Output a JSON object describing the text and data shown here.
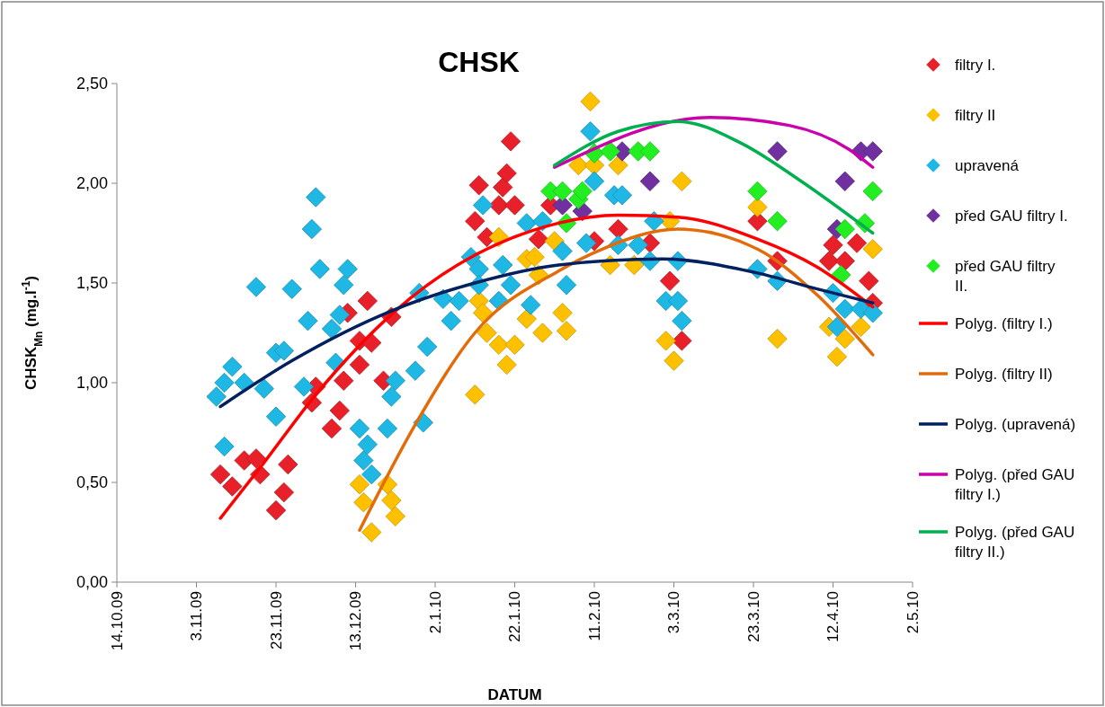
{
  "chart_data": {
    "type": "scatter",
    "title": "CHSK",
    "xlabel": "DATUM",
    "ylabel": "CHSK$_{Mn}$ (mg.l$^{-1}$)",
    "xlim": [
      "2009-10-14",
      "2010-05-02"
    ],
    "xticks": [
      {
        "value": "2009-10-14",
        "label": "14.10.09"
      },
      {
        "value": "2009-11-03",
        "label": "3.11.09"
      },
      {
        "value": "2009-11-23",
        "label": "23.11.09"
      },
      {
        "value": "2009-12-13",
        "label": "13.12.09"
      },
      {
        "value": "2010-01-02",
        "label": "2.1.10"
      },
      {
        "value": "2010-01-22",
        "label": "22.1.10"
      },
      {
        "value": "2010-02-11",
        "label": "11.2.10"
      },
      {
        "value": "2010-03-03",
        "label": "3.3.10"
      },
      {
        "value": "2010-03-23",
        "label": "23.3.10"
      },
      {
        "value": "2010-04-12",
        "label": "12.4.10"
      },
      {
        "value": "2010-05-02",
        "label": "2.5.10"
      }
    ],
    "ylim": [
      0,
      2.5
    ],
    "yticks": [
      {
        "value": 0,
        "label": "0,00"
      },
      {
        "value": 0.5,
        "label": "0,50"
      },
      {
        "value": 1,
        "label": "1,00"
      },
      {
        "value": 1.5,
        "label": "1,50"
      },
      {
        "value": 2,
        "label": "2,00"
      },
      {
        "value": 2.5,
        "label": "2,50"
      }
    ],
    "grid": false,
    "legend": "right",
    "marker": "diamond",
    "series": [
      {
        "name": "filtry I.",
        "color": "#e8202a",
        "x": [
          "2009-11-09",
          "2009-11-12",
          "2009-11-15",
          "2009-11-18",
          "2009-11-19",
          "2009-11-23",
          "2009-11-25",
          "2009-11-26",
          "2009-12-02",
          "2009-12-03",
          "2009-12-07",
          "2009-12-09",
          "2009-12-10",
          "2009-12-11",
          "2009-12-14",
          "2009-12-14",
          "2009-12-16",
          "2009-12-17",
          "2009-12-20",
          "2009-12-22",
          "2010-01-12",
          "2010-01-13",
          "2010-01-15",
          "2010-01-18",
          "2010-01-19",
          "2010-01-20",
          "2010-01-21",
          "2010-01-22",
          "2010-01-28",
          "2010-01-31",
          "2010-02-11",
          "2010-02-17",
          "2010-02-25",
          "2010-03-02",
          "2010-03-05",
          "2010-03-24",
          "2010-03-29",
          "2010-04-11",
          "2010-04-12",
          "2010-04-15",
          "2010-04-18",
          "2010-04-21",
          "2010-04-22"
        ],
        "values": [
          0.54,
          0.48,
          0.61,
          0.62,
          0.54,
          0.36,
          0.45,
          0.59,
          0.9,
          0.98,
          0.77,
          0.86,
          1.01,
          1.35,
          1.21,
          1.09,
          1.41,
          1.2,
          1.01,
          1.33,
          1.81,
          1.99,
          1.73,
          1.89,
          1.98,
          2.05,
          2.21,
          1.89,
          1.72,
          1.89,
          1.71,
          1.77,
          1.7,
          1.51,
          1.21,
          1.81,
          1.61,
          1.61,
          1.69,
          1.61,
          1.7,
          1.51,
          1.4
        ]
      },
      {
        "name": "filtry II",
        "color": "#ffc000",
        "x": [
          "2009-12-14",
          "2009-12-15",
          "2009-12-17",
          "2009-12-21",
          "2009-12-22",
          "2009-12-23",
          "2010-01-12",
          "2010-01-13",
          "2010-01-14",
          "2010-01-15",
          "2010-01-18",
          "2010-01-18",
          "2010-01-20",
          "2010-01-22",
          "2010-01-25",
          "2010-01-25",
          "2010-01-27",
          "2010-01-28",
          "2010-01-29",
          "2010-02-01",
          "2010-02-03",
          "2010-02-04",
          "2010-02-07",
          "2010-02-10",
          "2010-02-11",
          "2010-02-15",
          "2010-02-17",
          "2010-02-21",
          "2010-03-01",
          "2010-03-02",
          "2010-03-03",
          "2010-03-05",
          "2010-03-24",
          "2010-03-29",
          "2010-04-11",
          "2010-04-13",
          "2010-04-15",
          "2010-04-19",
          "2010-04-22"
        ],
        "values": [
          0.49,
          0.4,
          0.25,
          0.49,
          0.41,
          0.33,
          0.94,
          1.41,
          1.35,
          1.25,
          1.73,
          1.19,
          1.09,
          1.19,
          1.62,
          1.32,
          1.63,
          1.54,
          1.25,
          1.71,
          1.35,
          1.26,
          2.09,
          2.41,
          2.09,
          1.59,
          2.09,
          1.59,
          1.21,
          1.81,
          1.11,
          2.01,
          1.88,
          1.22,
          1.28,
          1.13,
          1.22,
          1.28,
          1.67
        ]
      },
      {
        "name": "upravená",
        "color": "#1fb7e3",
        "x": [
          "2009-11-08",
          "2009-11-10",
          "2009-11-10",
          "2009-11-12",
          "2009-11-15",
          "2009-11-18",
          "2009-11-20",
          "2009-11-23",
          "2009-11-23",
          "2009-11-25",
          "2009-11-27",
          "2009-11-30",
          "2009-12-01",
          "2009-12-02",
          "2009-12-03",
          "2009-12-04",
          "2009-12-07",
          "2009-12-08",
          "2009-12-09",
          "2009-12-10",
          "2009-12-11",
          "2009-12-14",
          "2009-12-15",
          "2009-12-16",
          "2009-12-17",
          "2009-12-21",
          "2009-12-22",
          "2009-12-23",
          "2009-12-28",
          "2009-12-29",
          "2009-12-30",
          "2009-12-31",
          "2010-01-04",
          "2010-01-06",
          "2010-01-08",
          "2010-01-11",
          "2010-01-13",
          "2010-01-13",
          "2010-01-14",
          "2010-01-18",
          "2010-01-19",
          "2010-01-21",
          "2010-01-25",
          "2010-01-26",
          "2010-01-29",
          "2010-02-03",
          "2010-02-04",
          "2010-02-09",
          "2010-02-10",
          "2010-02-11",
          "2010-02-16",
          "2010-02-17",
          "2010-02-18",
          "2010-02-22",
          "2010-02-25",
          "2010-02-26",
          "2010-03-01",
          "2010-03-04",
          "2010-03-04",
          "2010-03-05",
          "2010-03-24",
          "2010-03-29",
          "2010-04-12",
          "2010-04-13",
          "2010-04-15",
          "2010-04-19",
          "2010-04-22"
        ],
        "values": [
          0.93,
          1.0,
          0.68,
          1.08,
          1.0,
          1.48,
          0.97,
          1.15,
          0.83,
          1.16,
          1.47,
          0.98,
          1.31,
          1.77,
          1.93,
          1.57,
          1.27,
          1.1,
          1.34,
          1.49,
          1.57,
          0.77,
          0.61,
          0.69,
          0.54,
          0.77,
          0.93,
          1.01,
          1.06,
          1.45,
          0.8,
          1.18,
          1.42,
          1.31,
          1.41,
          1.63,
          1.57,
          1.49,
          1.89,
          1.41,
          1.59,
          1.49,
          1.8,
          1.39,
          1.81,
          1.66,
          1.49,
          1.7,
          2.26,
          2.01,
          1.94,
          1.69,
          1.94,
          1.69,
          1.61,
          1.81,
          1.41,
          1.61,
          1.41,
          1.31,
          1.57,
          1.51,
          1.45,
          1.28,
          1.37,
          1.37,
          1.35
        ]
      },
      {
        "name": "před GAU filtry I.",
        "color": "#7030a0",
        "x": [
          "2010-02-03",
          "2010-02-08",
          "2010-02-18",
          "2010-02-25",
          "2010-03-29",
          "2010-04-13",
          "2010-04-15",
          "2010-04-19",
          "2010-04-22"
        ],
        "values": [
          1.89,
          1.86,
          2.16,
          2.01,
          2.16,
          1.77,
          2.01,
          2.16,
          2.16
        ]
      },
      {
        "name": "před GAU filtry II.",
        "color": "#22ee22",
        "x": [
          "2010-01-31",
          "2010-02-03",
          "2010-02-04",
          "2010-02-07",
          "2010-02-08",
          "2010-02-11",
          "2010-02-15",
          "2010-02-22",
          "2010-02-25",
          "2010-03-24",
          "2010-03-29",
          "2010-04-14",
          "2010-04-15",
          "2010-04-20",
          "2010-04-22"
        ],
        "values": [
          1.96,
          1.96,
          1.8,
          1.92,
          1.96,
          2.15,
          2.16,
          2.16,
          2.16,
          1.96,
          1.81,
          1.54,
          1.77,
          1.8,
          1.96
        ]
      },
      {
        "name": "Polyg. (filtry I.)",
        "type": "line",
        "marker": "none",
        "color": "#ff0000",
        "x": [
          "2009-11-09",
          "2009-11-20",
          "2009-12-03",
          "2009-12-23",
          "2010-02-02",
          "2010-02-17",
          "2010-03-04",
          "2010-03-24",
          "2010-04-08",
          "2010-04-22"
        ],
        "values": [
          0.32,
          0.6,
          0.94,
          1.36,
          1.8,
          1.84,
          1.83,
          1.72,
          1.58,
          1.38
        ]
      },
      {
        "name": "Polyg. (filtry II)",
        "type": "line",
        "marker": "none",
        "color": "#e36c0a",
        "x": [
          "2009-12-14",
          "2009-12-28",
          "2010-01-12",
          "2010-02-02",
          "2010-02-13",
          "2010-03-04",
          "2010-03-24",
          "2010-04-08",
          "2010-04-22"
        ],
        "values": [
          0.26,
          0.79,
          1.25,
          1.56,
          1.67,
          1.77,
          1.67,
          1.44,
          1.14
        ]
      },
      {
        "name": "Polyg. (upravená)",
        "type": "line",
        "marker": "none",
        "color": "#002060",
        "x": [
          "2009-11-09",
          "2009-11-27",
          "2009-12-22",
          "2010-01-12",
          "2010-02-02",
          "2010-02-28",
          "2010-03-24",
          "2010-04-08",
          "2010-04-22"
        ],
        "values": [
          0.88,
          1.11,
          1.36,
          1.5,
          1.59,
          1.62,
          1.55,
          1.47,
          1.4
        ]
      },
      {
        "name": "Polyg. (před GAU filtry I.)",
        "type": "line",
        "marker": "none",
        "color": "#cc00aa",
        "x": [
          "2010-02-01",
          "2010-03-12",
          "2010-04-01",
          "2010-04-16",
          "2010-04-22"
        ],
        "values": [
          2.08,
          2.33,
          2.29,
          2.17,
          2.08
        ]
      },
      {
        "name": "Polyg. (před GAU filtry II.)",
        "type": "line",
        "marker": "none",
        "color": "#00b050",
        "x": [
          "2010-02-01",
          "2010-02-17",
          "2010-03-04",
          "2010-03-20",
          "2010-04-04",
          "2010-04-22"
        ],
        "values": [
          2.09,
          2.26,
          2.31,
          2.2,
          2.01,
          1.75
        ]
      }
    ]
  }
}
